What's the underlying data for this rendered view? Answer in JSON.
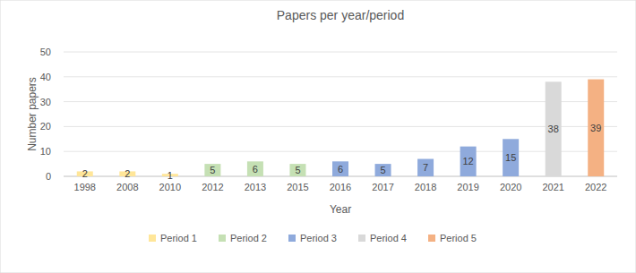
{
  "chart_data": {
    "type": "bar",
    "title": "Papers per year/period",
    "x_label": "Year",
    "y_label": "Number papers",
    "categories": [
      "1998",
      "2008",
      "2010",
      "2012",
      "2013",
      "2015",
      "2016",
      "2017",
      "2018",
      "2019",
      "2020",
      "2021",
      "2022"
    ],
    "series": [
      {
        "name": "Period 1",
        "color": "#ffe699",
        "values": [
          2,
          2,
          1,
          null,
          null,
          null,
          null,
          null,
          null,
          null,
          null,
          null,
          null
        ]
      },
      {
        "name": "Period 2",
        "color": "#c5e0b4",
        "values": [
          null,
          null,
          null,
          5,
          6,
          5,
          null,
          null,
          null,
          null,
          null,
          null,
          null
        ]
      },
      {
        "name": "Period 3",
        "color": "#8faadc",
        "values": [
          null,
          null,
          null,
          null,
          null,
          null,
          6,
          5,
          7,
          12,
          15,
          null,
          null
        ]
      },
      {
        "name": "Period 4",
        "color": "#d9d9d9",
        "values": [
          null,
          null,
          null,
          null,
          null,
          null,
          null,
          null,
          null,
          null,
          null,
          38,
          null
        ]
      },
      {
        "name": "Period 5",
        "color": "#f4b183",
        "values": [
          null,
          null,
          null,
          null,
          null,
          null,
          null,
          null,
          null,
          null,
          null,
          null,
          39
        ]
      }
    ],
    "ylim": [
      0,
      50
    ],
    "yticks": [
      0,
      10,
      20,
      30,
      40,
      50
    ],
    "grid": true,
    "stacked": true,
    "data_labels": true,
    "legend": "bottom"
  }
}
